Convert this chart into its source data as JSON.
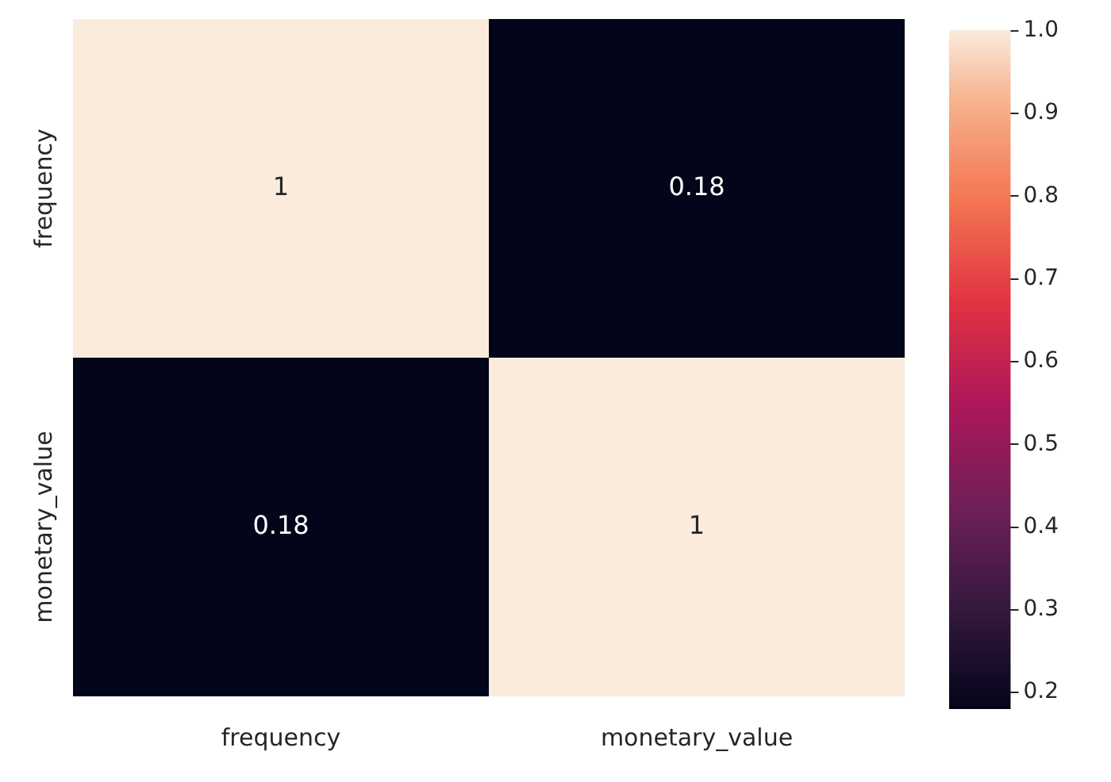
{
  "chart_data": {
    "type": "heatmap",
    "categories": [
      "frequency",
      "monetary_value"
    ],
    "y_categories": [
      "frequency",
      "monetary_value"
    ],
    "cells": [
      [
        1,
        0.18
      ],
      [
        0.18,
        1
      ]
    ],
    "data_labels": true,
    "clim": [
      0.18,
      1.0
    ],
    "cticks": [
      0.2,
      0.3,
      0.4,
      0.5,
      0.6,
      0.7,
      0.8,
      0.9,
      {
        "value": 1,
        "label": "1.0"
      }
    ]
  }
}
